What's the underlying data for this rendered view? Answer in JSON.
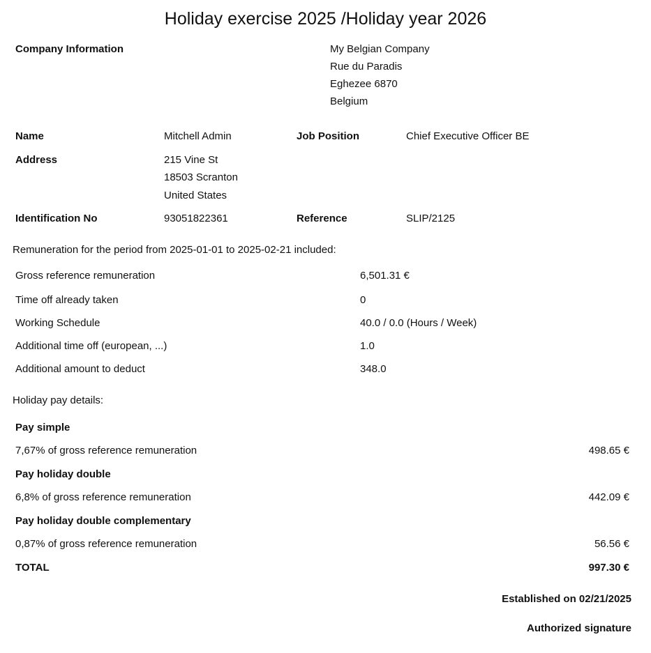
{
  "title": "Holiday exercise 2025 /Holiday year 2026",
  "company": {
    "label": "Company Information",
    "lines": [
      "My Belgian Company",
      "Rue du Paradis",
      "Eghezee 6870",
      "Belgium"
    ]
  },
  "employee": {
    "name_label": "Name",
    "name": "Mitchell Admin",
    "job_label": "Job Position",
    "job": "Chief Executive Officer BE",
    "address_label": "Address",
    "address_lines": [
      "215 Vine St",
      "18503 Scranton",
      "United States"
    ],
    "id_label": "Identification No",
    "id": "93051822361",
    "ref_label": "Reference",
    "ref": "SLIP/2125"
  },
  "remuneration": {
    "heading": "Remuneration for the period from 2025-01-01 to 2025-02-21 included:",
    "rows": [
      {
        "label": "Gross reference remuneration",
        "value": "6,501.31 €"
      },
      {
        "label": "Time off already taken",
        "value": "0"
      },
      {
        "label": "Working Schedule",
        "value": "40.0 / 0.0 (Hours / Week)"
      },
      {
        "label": "Additional time off (european, ...)",
        "value": "1.0"
      },
      {
        "label": "Additional amount to deduct",
        "value": "348.0"
      }
    ]
  },
  "holiday_pay": {
    "heading": "Holiday pay details:",
    "sections": [
      {
        "title": "Pay simple",
        "label": "7,67% of gross reference remuneration",
        "amount": "498.65 €"
      },
      {
        "title": "Pay holiday double",
        "label": "6,8% of gross reference remuneration",
        "amount": "442.09 €"
      },
      {
        "title": "Pay holiday double complementary",
        "label": "0,87% of gross reference remuneration",
        "amount": "56.56 €"
      }
    ],
    "total_label": "TOTAL",
    "total": "997.30 €"
  },
  "footer": {
    "established": "Established on 02/21/2025",
    "signature": "Authorized signature"
  }
}
